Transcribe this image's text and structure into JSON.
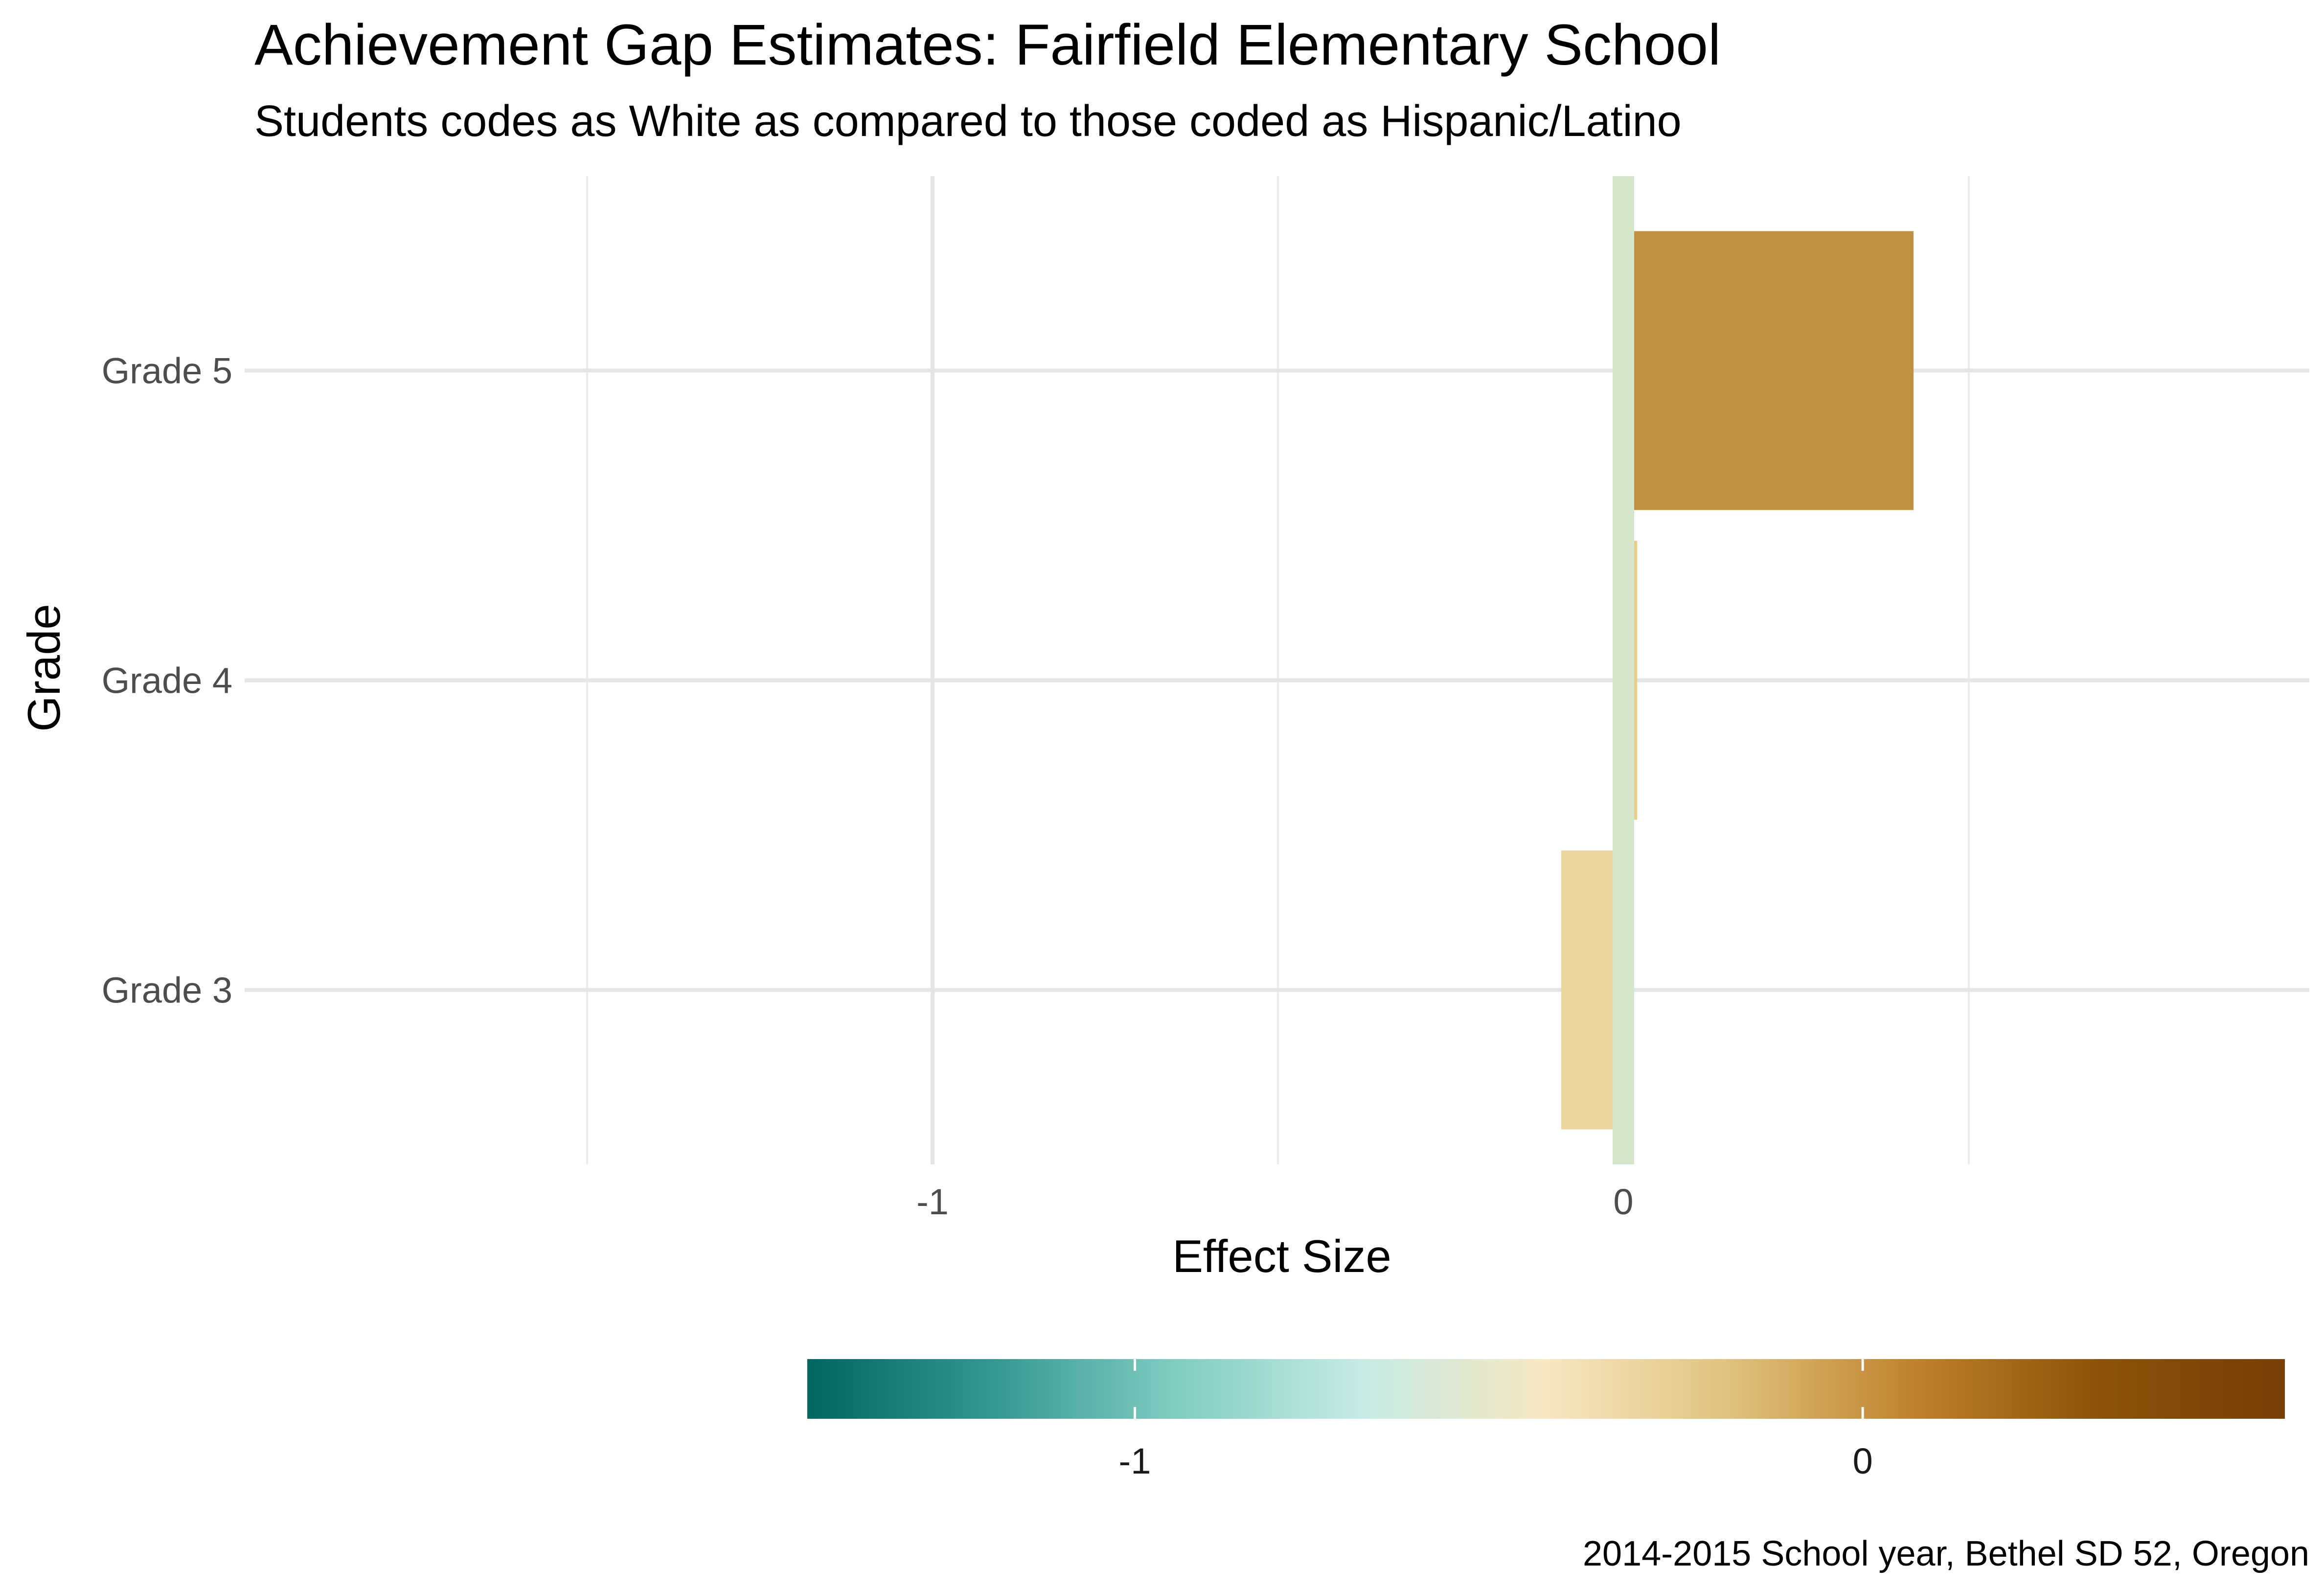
{
  "chart_data": {
    "type": "bar",
    "orientation": "horizontal",
    "title": "Achievement Gap Estimates: Fairfield Elementary School",
    "subtitle": "Students codes as White as compared to those coded as Hispanic/Latino",
    "xlabel": "Effect Size",
    "ylabel": "Grade",
    "caption": "2014-2015 School year, Bethel SD 52, Oregon",
    "categories": [
      "Grade 3",
      "Grade 4",
      "Grade 5"
    ],
    "values": [
      -0.09,
      0.02,
      0.42
    ],
    "xlim": [
      -1.5,
      1.0
    ],
    "x_ticks": [
      -1,
      0
    ],
    "x_tick_labels": [
      "-1",
      "0"
    ],
    "x_minor_gridlines": [
      -1.5,
      -0.5,
      0.5
    ],
    "grid": true,
    "zero_line_color": "#d4e6cc",
    "colorscale": {
      "type": "diverging",
      "palette": "BrBG",
      "reversed": true,
      "limits": [
        -1.45,
        0.58
      ],
      "ticks": [
        -1,
        0
      ],
      "tick_labels": [
        "-1",
        "0"
      ],
      "stops": [
        "#01665e",
        "#35978f",
        "#80cdc1",
        "#c7eae5",
        "#f6e8c3",
        "#dfc27d",
        "#bf812d",
        "#8c510a",
        "#7a3e06"
      ]
    },
    "legend": "bottom",
    "bar_colors": [
      "#ebd59e",
      "#e7cd8a",
      "#be9143"
    ]
  }
}
